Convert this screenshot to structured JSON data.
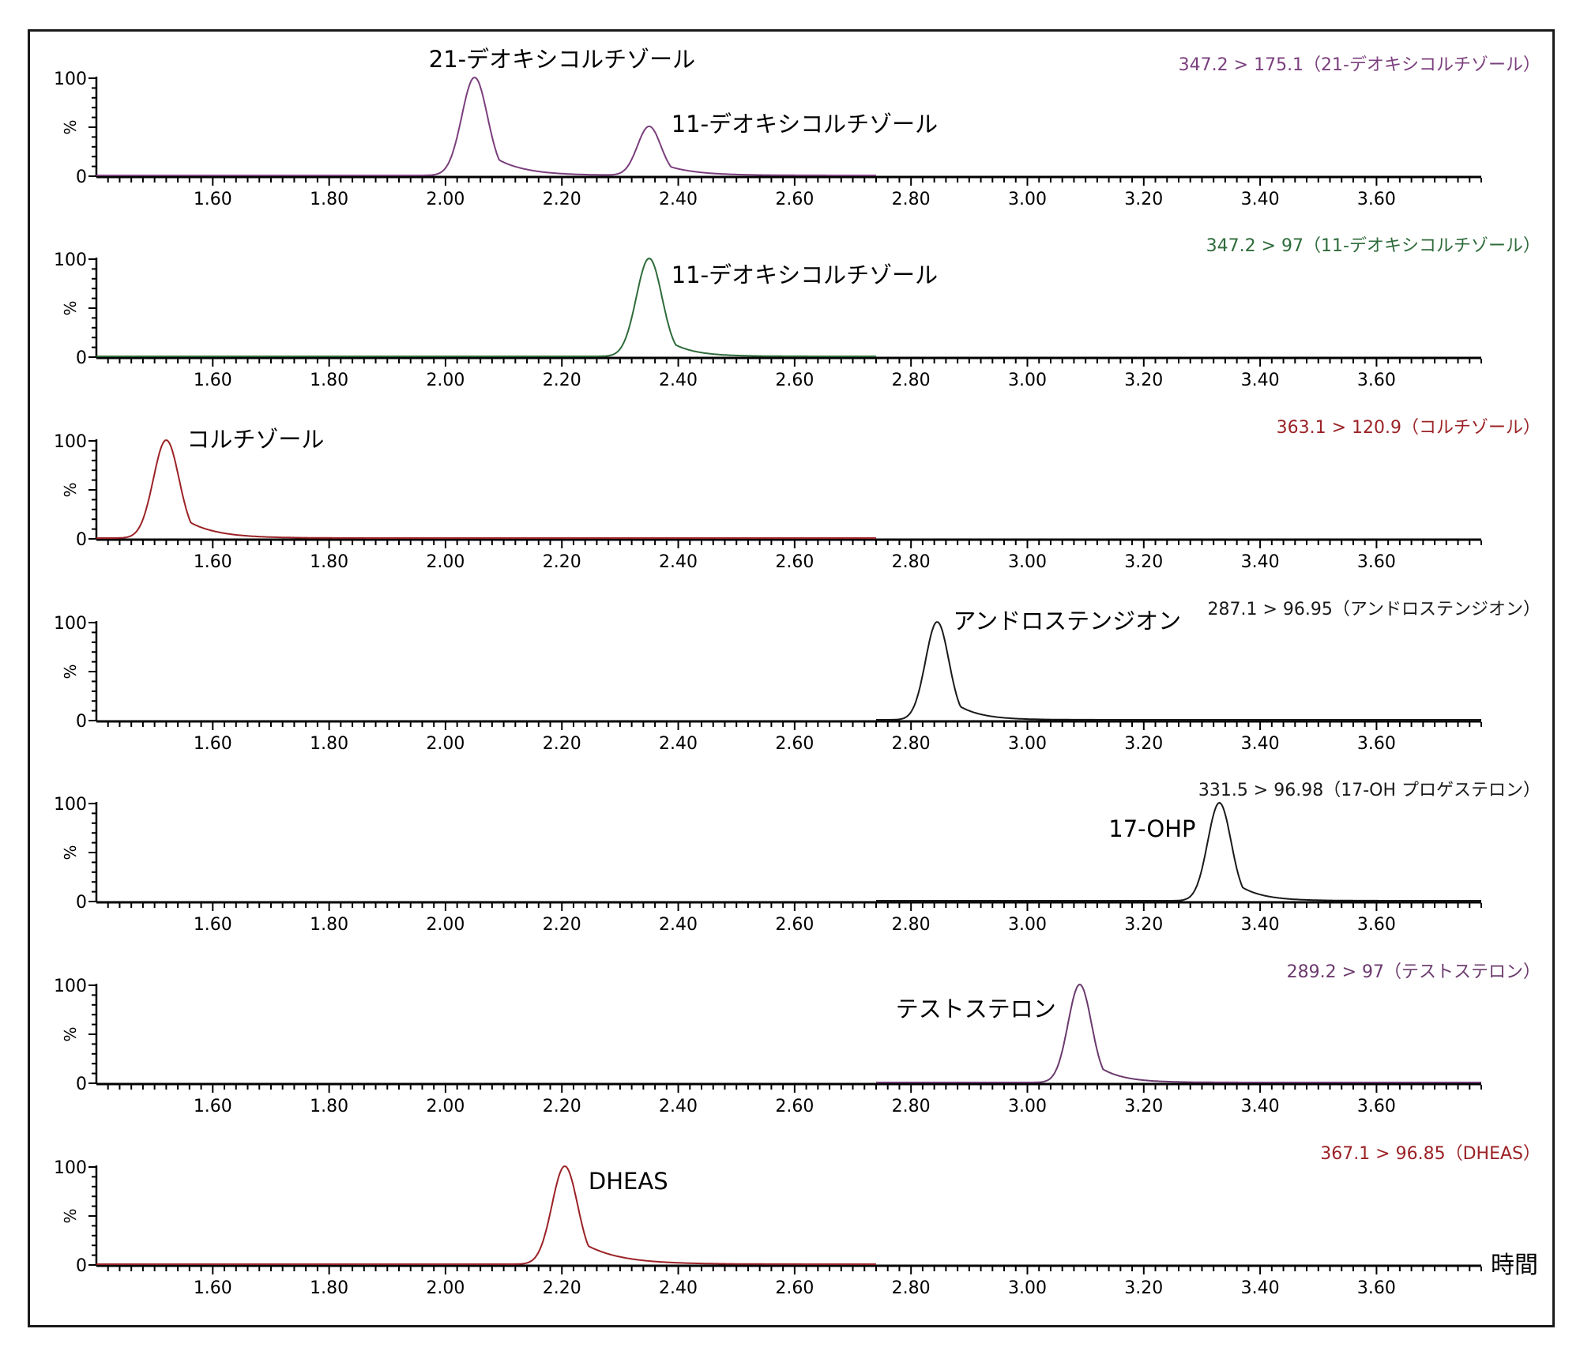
{
  "x_axis_label": "時間",
  "chart_data": {
    "type": "line",
    "description_kind": "stacked_chromatograms",
    "xlim": [
      1.4,
      3.78
    ],
    "ylim": [
      0,
      100
    ],
    "x_ticks": [
      "1.60",
      "1.80",
      "2.00",
      "2.20",
      "2.40",
      "2.60",
      "2.80",
      "3.00",
      "3.20",
      "3.40",
      "3.60"
    ],
    "y_ticks": [
      "100",
      "%",
      "0"
    ],
    "xlabel": "時間",
    "panels": [
      {
        "transition": "347.2 > 175.1（21-デオキシコルチゾール）",
        "color": "#7b3f7e",
        "trace_range": [
          1.4,
          2.74
        ],
        "peaks": [
          {
            "name": "21-デオキシコルチゾール",
            "rt": 2.05,
            "height": 100,
            "width": 0.022,
            "tail": 0.05
          },
          {
            "name": "11-デオキシコルチゾール",
            "rt": 2.35,
            "height": 50,
            "width": 0.02,
            "tail": 0.05
          }
        ]
      },
      {
        "transition": "347.2 > 97（11-デオキシコルチゾール）",
        "color": "#2e6b3a",
        "trace_range": [
          1.4,
          2.74
        ],
        "peaks": [
          {
            "name": "11-デオキシコルチゾール",
            "rt": 2.35,
            "height": 100,
            "width": 0.022,
            "tail": 0.04
          }
        ]
      },
      {
        "transition": "363.1 > 120.9（コルチゾール）",
        "color": "#9b2226",
        "trace_range": [
          1.4,
          2.74
        ],
        "peaks": [
          {
            "name": "コルチゾール",
            "rt": 1.52,
            "height": 100,
            "width": 0.022,
            "tail": 0.05
          }
        ]
      },
      {
        "transition": "287.1 > 96.95（アンドロステンジオン）",
        "color": "#1a1a1a",
        "trace_range": [
          2.74,
          3.78
        ],
        "peaks": [
          {
            "name": "アンドロステンジオン",
            "rt": 2.845,
            "height": 100,
            "width": 0.02,
            "tail": 0.04
          }
        ]
      },
      {
        "transition": "331.5 > 96.98（17-OH プロゲステロン）",
        "color": "#1a1a1a",
        "trace_range": [
          2.74,
          3.78
        ],
        "peaks": [
          {
            "name": "17-OHP",
            "rt": 3.33,
            "height": 100,
            "width": 0.02,
            "tail": 0.04
          }
        ]
      },
      {
        "transition": "289.2 > 97（テストステロン）",
        "color": "#6b3a6e",
        "trace_range": [
          2.74,
          3.78
        ],
        "peaks": [
          {
            "name": "テストステロン",
            "rt": 3.09,
            "height": 100,
            "width": 0.02,
            "tail": 0.04
          }
        ]
      },
      {
        "transition": "367.1 > 96.85（DHEAS）",
        "color": "#9b2226",
        "trace_range": [
          1.4,
          2.74
        ],
        "peaks": [
          {
            "name": "DHEAS",
            "rt": 2.205,
            "height": 100,
            "width": 0.022,
            "tail": 0.06
          }
        ]
      }
    ]
  },
  "transition_colors": {
    "purple": "#7b3f7e",
    "green": "#2e6b3a",
    "red": "#9b2226",
    "black": "#1a1a1a"
  }
}
